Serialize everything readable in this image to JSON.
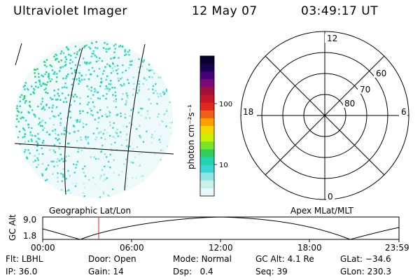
{
  "header": {
    "title": "Ultraviolet Imager",
    "date": "12 May 07",
    "time": "03:49:17 UT"
  },
  "colorbar": {
    "unit_label": "photon cm⁻²s⁻¹",
    "ticks": [
      "100",
      "10"
    ],
    "colors": [
      "#0a0030",
      "#1a0050",
      "#46007a",
      "#7a0a7a",
      "#a0103a",
      "#c81428",
      "#e0281e",
      "#f06014",
      "#ffa000",
      "#f0d800",
      "#c8f000",
      "#78e628",
      "#2ecf5a",
      "#22d4b0",
      "#3ad6d6",
      "#90e4e4",
      "#c8eeee",
      "#e8f8f8"
    ]
  },
  "left_panel": {
    "label": "Geographic Lat/Lon"
  },
  "right_panel": {
    "label": "Apex MLat/MLT",
    "mlt_labels": {
      "top": "12",
      "left": "18",
      "right": "6",
      "bottom": "0"
    },
    "mlat_labels": [
      "60",
      "70",
      "80"
    ]
  },
  "timeline": {
    "ylabel": "GC Alt",
    "yticks": [
      "9.0",
      "1.8"
    ],
    "xticks": [
      "00:00",
      "06:00",
      "12:00",
      "18:00",
      "23:59"
    ],
    "current_time_color": "#d02020"
  },
  "status": {
    "row1": [
      {
        "label": "Flt:",
        "value": "LBHL"
      },
      {
        "label": "Door:",
        "value": "Open"
      },
      {
        "label": "Mode:",
        "value": "Normal"
      },
      {
        "label": "GC Alt:",
        "value": "4.1 Re"
      },
      {
        "label": "GLat:",
        "value": "−34.6"
      }
    ],
    "row2": [
      {
        "label": "IP:",
        "value": "36.0"
      },
      {
        "label": "Gain:",
        "value": "14"
      },
      {
        "label": "Dsp:",
        "value": "0.4"
      },
      {
        "label": "Seq:",
        "value": "39"
      },
      {
        "label": "GLon:",
        "value": "230.3"
      }
    ]
  }
}
